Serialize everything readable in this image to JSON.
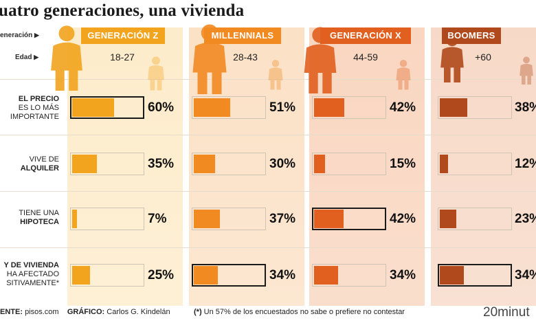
{
  "title": "uatro generaciones, una vivienda",
  "labels": {
    "generacion": "eneración",
    "edad": "Edad"
  },
  "colors": {
    "gen_z": "#f2a41e",
    "millennials": "#f28a22",
    "gen_x": "#e2601f",
    "boomers": "#b04a1c",
    "bg_gen_z": "#fdeccb",
    "bg_millennials": "#fbe1c6",
    "bg_gen_x": "#f9d6c0",
    "bg_boomers": "#f7d9c7"
  },
  "chart_data": {
    "type": "bar",
    "title": "uatro generaciones, una vivienda",
    "unit": "%",
    "xlim": [
      0,
      100
    ],
    "generations": [
      {
        "name": "GENERACIÓN Z",
        "age": "18-27",
        "color": "#f2a41e"
      },
      {
        "name": "MILLENNIALS",
        "age": "28-43",
        "color": "#f28a22"
      },
      {
        "name": "GENERACIÓN X",
        "age": "44-59",
        "color": "#e2601f"
      },
      {
        "name": "BOOMERS",
        "age": "+60",
        "color": "#b04a1c"
      }
    ],
    "categories": [
      {
        "lines": [
          {
            "text": "EL PRECIO",
            "bold": true
          },
          {
            "text": "ES LO MÁS",
            "bold": false
          },
          {
            "text": "IMPORTANTE",
            "bold": false
          }
        ]
      },
      {
        "lines": [
          {
            "text": "VIVE DE",
            "bold": false
          },
          {
            "text": "ALQUILER",
            "bold": true
          }
        ]
      },
      {
        "lines": [
          {
            "text": "TIENE UNA",
            "bold": false
          },
          {
            "text": "HIPOTECA",
            "bold": true
          }
        ]
      },
      {
        "lines": [
          {
            "text": "Y DE VIVIENDA",
            "bold": true
          },
          {
            "text": "HA AFECTADO",
            "bold": false
          },
          {
            "text": "SITIVAMENTE*",
            "bold": false
          }
        ]
      }
    ],
    "series": [
      {
        "name": "GENERACIÓN Z",
        "values": [
          60,
          35,
          7,
          25
        ],
        "labels": [
          "60%",
          "35%",
          "7%",
          "25%"
        ],
        "highlight": [
          true,
          false,
          false,
          false
        ]
      },
      {
        "name": "MILLENNIALS",
        "values": [
          51,
          30,
          37,
          34
        ],
        "labels": [
          "51%",
          "30%",
          "37%",
          "34%"
        ],
        "highlight": [
          false,
          false,
          false,
          true
        ]
      },
      {
        "name": "GENERACIÓN X",
        "values": [
          42,
          15,
          42,
          34
        ],
        "labels": [
          "42%",
          "15%",
          "42%",
          "34%"
        ],
        "highlight": [
          false,
          false,
          true,
          false
        ]
      },
      {
        "name": "BOOMERS",
        "values": [
          38,
          12,
          23,
          34
        ],
        "labels": [
          "38%",
          "12%",
          "23%",
          "34%"
        ],
        "highlight": [
          false,
          false,
          false,
          true
        ]
      }
    ]
  },
  "footer": {
    "source_label": "ENTE:",
    "source_value": "pisos.com",
    "graphic_label": "GRÁFICO:",
    "graphic_value": "Carlos G. Kindelán",
    "note_star": "(*)",
    "note_text": "Un 57% de los encuestados no sabe o prefiere no contestar",
    "brand": "20minut"
  }
}
